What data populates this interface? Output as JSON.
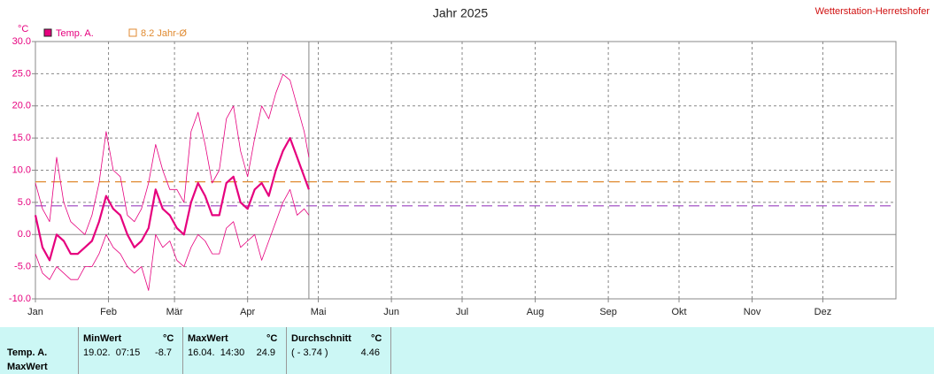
{
  "chart_data": {
    "type": "line",
    "title": "Jahr 2025",
    "station": "Wetterstation-Herretshofer",
    "y_unit": "°C",
    "x": [
      0,
      3,
      6,
      9,
      12,
      15,
      18,
      21,
      24,
      27,
      30,
      33,
      36,
      39,
      42,
      45,
      48,
      51,
      54,
      57,
      60,
      63,
      66,
      69,
      72,
      75,
      78,
      81,
      84,
      87,
      90,
      93,
      96,
      99,
      102,
      105,
      108,
      111,
      114,
      116
    ],
    "series": [
      {
        "name": "Temp. A.",
        "color": "#e6007e",
        "line_width": 2.2,
        "values": [
          3,
          -2,
          -4,
          0,
          -1,
          -3,
          -3,
          -2,
          -1,
          2,
          6,
          4,
          3,
          0,
          -2,
          -1,
          1,
          7,
          4,
          3,
          1,
          0,
          5,
          8,
          6,
          3,
          3,
          8,
          9,
          5,
          4,
          7,
          8,
          6,
          10,
          13,
          15,
          12,
          9,
          7
        ]
      },
      {
        "color": "#e6007e",
        "line_width": 0.8,
        "values": [
          8,
          4,
          2,
          12,
          5,
          2,
          1,
          0,
          3,
          8,
          16,
          10,
          9,
          3,
          2,
          4,
          8,
          14,
          10,
          7,
          7,
          5,
          16,
          19,
          14,
          8,
          10,
          18,
          20,
          13,
          9,
          15,
          20,
          18,
          22,
          24.9,
          24,
          20,
          16,
          12
        ]
      },
      {
        "color": "#e6007e",
        "line_width": 0.8,
        "values": [
          -3,
          -6,
          -7,
          -5,
          -6,
          -7,
          -7,
          -5,
          -5,
          -3,
          0,
          -2,
          -3,
          -5,
          -6,
          -5,
          -8.7,
          0,
          -2,
          -1,
          -4,
          -5,
          -2,
          0,
          -1,
          -3,
          -3,
          1,
          2,
          -2,
          -1,
          0,
          -4,
          -1,
          2,
          5,
          7,
          3,
          4,
          3
        ]
      }
    ],
    "legend": [
      {
        "label": "Temp. A.",
        "color": "#e6007e",
        "filled": true
      },
      {
        "label": "8.2 Jahr-Ø",
        "color": "#e08a30",
        "filled": false
      }
    ],
    "reference_lines": [
      {
        "value": 8.2,
        "color": "#e08a30"
      },
      {
        "value": 4.46,
        "color": "#9a40c0"
      }
    ],
    "x_marker": 116,
    "xlim": [
      0,
      365
    ],
    "xticks": [
      {
        "value": 0,
        "label": "Jan"
      },
      {
        "value": 31,
        "label": "Feb"
      },
      {
        "value": 59,
        "label": "Mär"
      },
      {
        "value": 90,
        "label": "Apr"
      },
      {
        "value": 120,
        "label": "Mai"
      },
      {
        "value": 151,
        "label": "Jun"
      },
      {
        "value": 181,
        "label": "Jul"
      },
      {
        "value": 212,
        "label": "Aug"
      },
      {
        "value": 243,
        "label": "Sep"
      },
      {
        "value": 273,
        "label": "Okt"
      },
      {
        "value": 304,
        "label": "Nov"
      },
      {
        "value": 334,
        "label": "Dez"
      }
    ],
    "ylim": [
      -10,
      30
    ],
    "yticks": [
      {
        "value": -10,
        "label": "-10.0"
      },
      {
        "value": -5,
        "label": "-5.0"
      },
      {
        "value": 0,
        "label": "0.0"
      },
      {
        "value": 5,
        "label": "5.0"
      },
      {
        "value": 10,
        "label": "10.0"
      },
      {
        "value": 15,
        "label": "15.0"
      },
      {
        "value": 20,
        "label": "20.0"
      },
      {
        "value": 25,
        "label": "25.0"
      },
      {
        "value": 30,
        "label": "30.0"
      }
    ],
    "grid": true
  },
  "table": {
    "row_labels": [
      "Temp. A.",
      "MaxWert"
    ],
    "columns": [
      {
        "title": "MinWert",
        "unit": "°C",
        "when": "19.02.  07:15",
        "value": "-8.7"
      },
      {
        "title": "MaxWert",
        "unit": "°C",
        "when": "16.04.  14:30",
        "value": "24.9"
      },
      {
        "title": "Durchschnitt",
        "unit": "°C",
        "when": "( - 3.74 )",
        "value": "4.46"
      }
    ]
  }
}
